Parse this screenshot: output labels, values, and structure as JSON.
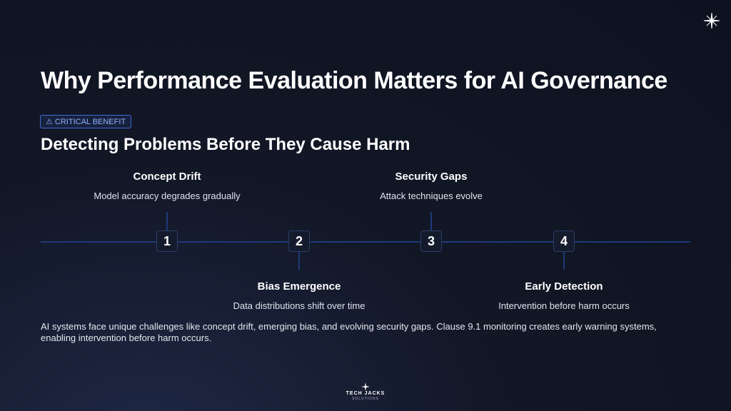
{
  "header": {
    "title": "Why Performance Evaluation Matters for AI Governance",
    "badge": "CRITICAL BENEFIT",
    "subtitle": "Detecting Problems Before They Cause Harm"
  },
  "timeline": [
    {
      "number": "1",
      "title": "Concept Drift",
      "description": "Model accuracy degrades gradually"
    },
    {
      "number": "2",
      "title": "Bias Emergence",
      "description": "Data distributions shift over time"
    },
    {
      "number": "3",
      "title": "Security Gaps",
      "description": "Attack techniques evolve"
    },
    {
      "number": "4",
      "title": "Early Detection",
      "description": "Intervention before harm occurs"
    }
  ],
  "body": "AI systems face unique challenges like concept drift, emerging bias, and evolving security gaps. Clause 9.1 monitoring creates early warning systems, enabling intervention before harm occurs.",
  "footer": {
    "brand": "TECH JACKS",
    "tagline": "SOLUTIONS"
  }
}
